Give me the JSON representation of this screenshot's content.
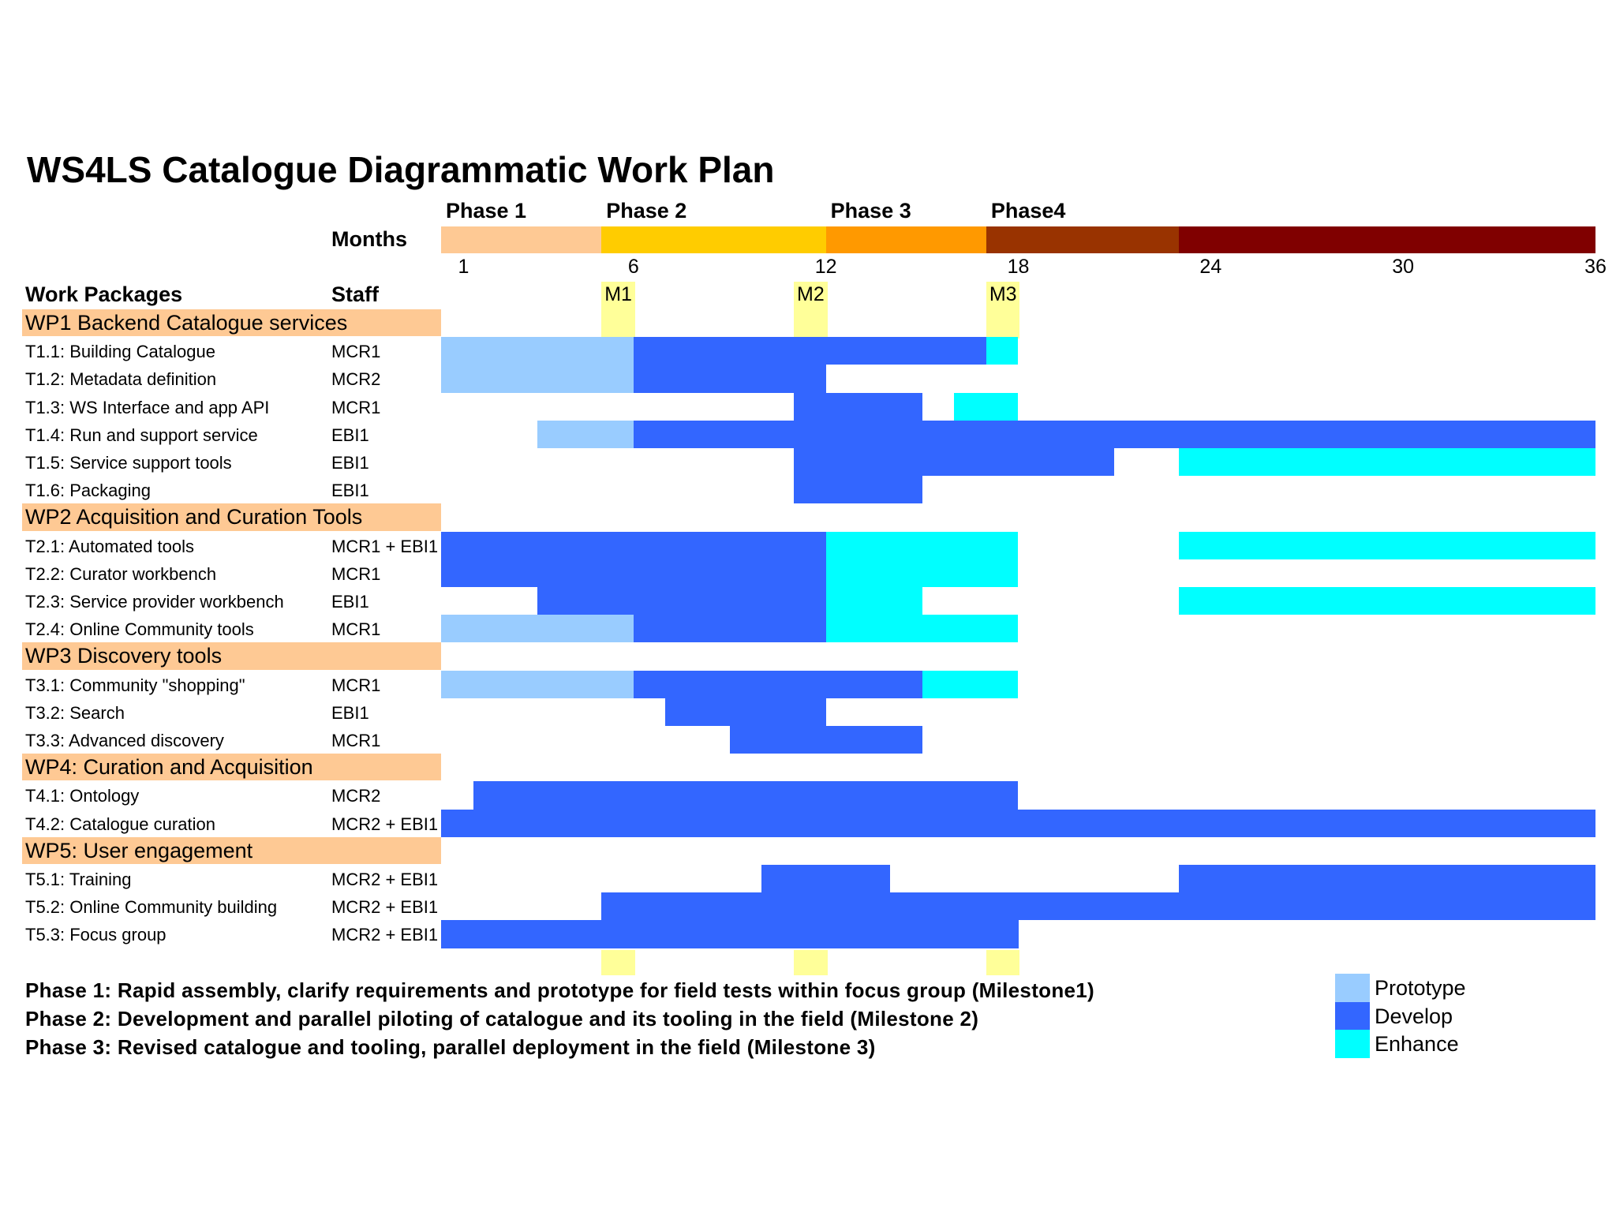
{
  "title": "WS4LS Catalogue Diagrammatic Work Plan",
  "chart_data": {
    "type": "gantt",
    "title": "WS4LS Catalogue Diagrammatic Work Plan",
    "timeline_label": "Months",
    "work_packages_header": "Work Packages",
    "staff_header": "Staff",
    "axis": {
      "min": 0,
      "max": 36
    },
    "ticks": [
      {
        "label": "1",
        "month": 0.7
      },
      {
        "label": "6",
        "month": 6
      },
      {
        "label": "12",
        "month": 12
      },
      {
        "label": "18",
        "month": 18
      },
      {
        "label": "24",
        "month": 24
      },
      {
        "label": "30",
        "month": 30
      },
      {
        "label": "36",
        "month": 36
      }
    ],
    "phases": [
      {
        "label": "Phase 1",
        "start": 0,
        "end": 5,
        "color": "#fec994"
      },
      {
        "label": "Phase 2",
        "start": 5,
        "end": 12,
        "color": "#ffcc00"
      },
      {
        "label": "Phase 3",
        "start": 12,
        "end": 17,
        "color": "#ff9900"
      },
      {
        "label": "Phase4",
        "start": 17,
        "end": 23,
        "color": "#993300"
      },
      {
        "label": "",
        "start": 23,
        "end": 36,
        "color": "#800000"
      }
    ],
    "milestones": [
      {
        "label": "M1",
        "start": 5,
        "end": 6
      },
      {
        "label": "M2",
        "start": 11,
        "end": 12
      },
      {
        "label": "M3",
        "start": 17,
        "end": 18
      }
    ],
    "milestone_color": "#ffff99",
    "rows": [
      {
        "type": "wp",
        "label": "WP1 Backend Catalogue services"
      },
      {
        "type": "task",
        "label": "T1.1: Building Catalogue",
        "staff": "MCR1",
        "bars": [
          {
            "start": 0,
            "end": 6,
            "kind": "prototype"
          },
          {
            "start": 6,
            "end": 17,
            "kind": "develop"
          },
          {
            "start": 17,
            "end": 18,
            "kind": "enhance"
          }
        ]
      },
      {
        "type": "task",
        "label": "T1.2: Metadata definition",
        "staff": "MCR2",
        "bars": [
          {
            "start": 0,
            "end": 6,
            "kind": "prototype"
          },
          {
            "start": 6,
            "end": 12,
            "kind": "develop"
          }
        ]
      },
      {
        "type": "task",
        "label": "T1.3: WS Interface and app API",
        "staff": "MCR1",
        "bars": [
          {
            "start": 11,
            "end": 15,
            "kind": "develop"
          },
          {
            "start": 16,
            "end": 18,
            "kind": "enhance"
          }
        ]
      },
      {
        "type": "task",
        "label": "T1.4: Run and support  service",
        "staff": "EBI1",
        "bars": [
          {
            "start": 3,
            "end": 6,
            "kind": "prototype"
          },
          {
            "start": 6,
            "end": 36,
            "kind": "develop"
          }
        ]
      },
      {
        "type": "task",
        "label": "T1.5: Service support tools",
        "staff": "EBI1",
        "bars": [
          {
            "start": 11,
            "end": 21,
            "kind": "develop"
          },
          {
            "start": 23,
            "end": 36,
            "kind": "enhance"
          }
        ]
      },
      {
        "type": "task",
        "label": "T1.6: Packaging",
        "staff": "EBI1",
        "bars": [
          {
            "start": 11,
            "end": 15,
            "kind": "develop"
          }
        ]
      },
      {
        "type": "wp",
        "label": "WP2 Acquisition and Curation Tools"
      },
      {
        "type": "task",
        "label": "T2.1: Automated tools",
        "staff": "MCR1 + EBI1",
        "bars": [
          {
            "start": 0,
            "end": 12,
            "kind": "develop"
          },
          {
            "start": 12,
            "end": 18,
            "kind": "enhance"
          },
          {
            "start": 23,
            "end": 36,
            "kind": "enhance"
          }
        ]
      },
      {
        "type": "task",
        "label": "T2.2: Curator workbench",
        "staff": "MCR1",
        "bars": [
          {
            "start": 0,
            "end": 12,
            "kind": "develop"
          },
          {
            "start": 12,
            "end": 18,
            "kind": "enhance"
          }
        ]
      },
      {
        "type": "task",
        "label": "T2.3: Service provider workbench",
        "staff": "EBI1",
        "bars": [
          {
            "start": 3,
            "end": 12,
            "kind": "develop"
          },
          {
            "start": 12,
            "end": 15,
            "kind": "enhance"
          },
          {
            "start": 23,
            "end": 36,
            "kind": "enhance"
          }
        ]
      },
      {
        "type": "task",
        "label": "T2.4: Online Community tools",
        "staff": "MCR1",
        "bars": [
          {
            "start": 0,
            "end": 6,
            "kind": "prototype"
          },
          {
            "start": 6,
            "end": 12,
            "kind": "develop"
          },
          {
            "start": 12,
            "end": 18,
            "kind": "enhance"
          }
        ]
      },
      {
        "type": "wp",
        "label": "WP3 Discovery tools"
      },
      {
        "type": "task",
        "label": "T3.1: Community \"shopping\"",
        "staff": "MCR1",
        "bars": [
          {
            "start": 0,
            "end": 6,
            "kind": "prototype"
          },
          {
            "start": 6,
            "end": 15,
            "kind": "develop"
          },
          {
            "start": 15,
            "end": 18,
            "kind": "enhance"
          }
        ]
      },
      {
        "type": "task",
        "label": "T3.2: Search",
        "staff": "EBI1",
        "bars": [
          {
            "start": 7,
            "end": 12,
            "kind": "develop"
          }
        ]
      },
      {
        "type": "task",
        "label": "T3.3: Advanced discovery",
        "staff": "MCR1",
        "bars": [
          {
            "start": 9,
            "end": 15,
            "kind": "develop"
          }
        ]
      },
      {
        "type": "wp",
        "label": "WP4: Curation and Acquisition"
      },
      {
        "type": "task",
        "label": "T4.1: Ontology",
        "staff": "MCR2",
        "bars": [
          {
            "start": 1,
            "end": 18,
            "kind": "develop"
          }
        ]
      },
      {
        "type": "task",
        "label": "T4.2: Catalogue curation",
        "staff": "MCR2 + EBI1",
        "bars": [
          {
            "start": 0,
            "end": 36,
            "kind": "develop"
          }
        ]
      },
      {
        "type": "wp",
        "label": "WP5: User engagement"
      },
      {
        "type": "task",
        "label": "T5.1: Training",
        "staff": "MCR2 + EBI1",
        "bars": [
          {
            "start": 10,
            "end": 14,
            "kind": "develop"
          },
          {
            "start": 23,
            "end": 36,
            "kind": "develop"
          }
        ]
      },
      {
        "type": "task",
        "label": "T5.2: Online Community building",
        "staff": "MCR2 + EBI1",
        "bars": [
          {
            "start": 5,
            "end": 36,
            "kind": "develop"
          }
        ]
      },
      {
        "type": "task",
        "label": "T5.3: Focus group",
        "staff": "MCR2 + EBI1",
        "bars": [
          {
            "start": 0,
            "end": 18,
            "kind": "develop"
          }
        ]
      }
    ],
    "legend": [
      {
        "kind": "prototype",
        "label": "Prototype",
        "color": "#99ccff"
      },
      {
        "kind": "develop",
        "label": "Develop",
        "color": "#3366ff"
      },
      {
        "kind": "enhance",
        "label": "Enhance",
        "color": "#00ffff"
      }
    ],
    "wp_band_color": "#fec994"
  },
  "notes": [
    "Phase 1: Rapid assembly, clarify requirements and prototype for field tests within focus group (Milestone1)",
    "Phase 2: Development and parallel piloting of catalogue and its tooling in the field (Milestone 2)",
    "Phase 3: Revised catalogue and tooling, parallel deployment in the field (Milestone 3)"
  ]
}
